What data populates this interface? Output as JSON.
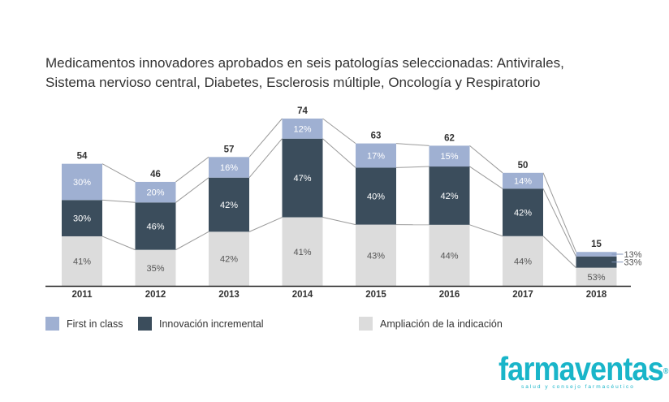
{
  "title_lines": [
    "Medicamentos innovadores aprobados en seis patologías seleccionadas: Antivirales,",
    "Sistema nervioso central, Diabetes, Esclerosis múltiple, Oncología y Respiratorio"
  ],
  "colors": {
    "first_in_class": "#9fb0d2",
    "innovacion_incremental": "#3b4d5c",
    "ampliacion": "#dcdcdc",
    "connector": "#9a9a9a",
    "axis": "#222222",
    "brand": "#19b5c9"
  },
  "chart_data": {
    "type": "bar",
    "stacked": true,
    "stack_mode": "percent",
    "categories": [
      "2011",
      "2012",
      "2013",
      "2014",
      "2015",
      "2016",
      "2017",
      "2018"
    ],
    "totals": [
      54,
      46,
      57,
      74,
      63,
      62,
      50,
      15
    ],
    "series": [
      {
        "name": "Ampliación de la indicación",
        "values": [
          41,
          35,
          42,
          41,
          43,
          44,
          44,
          53
        ]
      },
      {
        "name": "Innovación incremental",
        "values": [
          30,
          46,
          42,
          47,
          40,
          42,
          42,
          33
        ]
      },
      {
        "name": "First in class",
        "values": [
          30,
          20,
          16,
          12,
          17,
          15,
          14,
          13
        ]
      }
    ],
    "value_suffix": "%",
    "legend_position": "bottom",
    "grid": false
  },
  "legend": [
    {
      "label": "First in class",
      "color_key": "first_in_class"
    },
    {
      "label": "Innovación incremental",
      "color_key": "innovacion_incremental"
    },
    {
      "label": "Ampliación de la indicación",
      "color_key": "ampliacion"
    }
  ],
  "brand": {
    "name": "farmaventas",
    "registered": "®",
    "tagline": "salud y consejo farmacéutico"
  }
}
